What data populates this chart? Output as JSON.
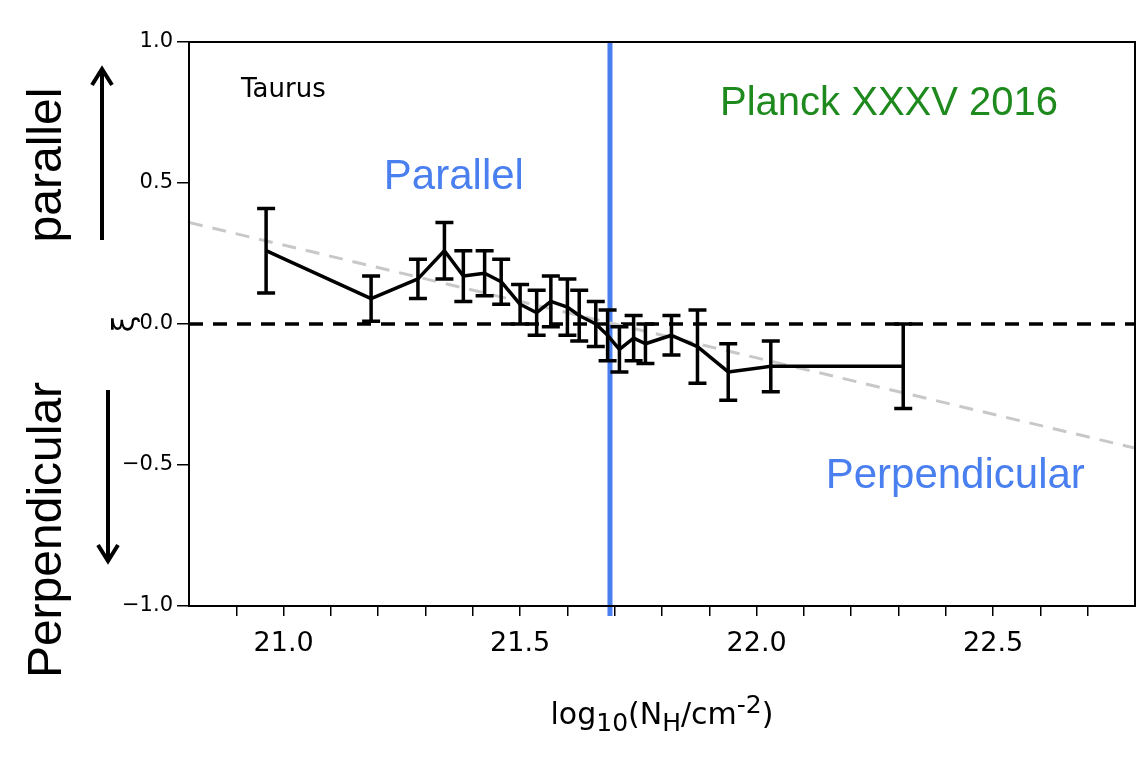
{
  "chart_data": {
    "type": "line",
    "xlabel": "log$_{10}$(N$_{H}$/cm$^{-2}$)",
    "ylabel": "ξ",
    "annotations": [
      "Taurus",
      "Planck XXXV 2016",
      "Parallel",
      "Perpendicular",
      "parallel",
      "Perpendicular"
    ],
    "xlim": [
      20.8,
      22.8
    ],
    "ylim": [
      -1,
      1
    ],
    "xticks": [
      {
        "value": 20.9,
        "label": null
      },
      {
        "value": 21,
        "label": "21.0"
      },
      {
        "value": 21.1,
        "label": null
      },
      {
        "value": 21.2,
        "label": null
      },
      {
        "value": 21.3,
        "label": null
      },
      {
        "value": 21.4,
        "label": null
      },
      21.5,
      {
        "value": 21.6,
        "label": null
      },
      {
        "value": 21.7,
        "label": null
      },
      {
        "value": 21.8,
        "label": null
      },
      {
        "value": 21.9,
        "label": null
      },
      {
        "value": 22,
        "label": "22.0"
      },
      {
        "value": 22.1,
        "label": null
      },
      {
        "value": 22.2,
        "label": null
      },
      {
        "value": 22.3,
        "label": null
      },
      {
        "value": 22.4,
        "label": null
      },
      22.5,
      {
        "value": 22.6,
        "label": null
      },
      {
        "value": 22.7,
        "label": null
      }
    ],
    "yticks": [
      {
        "value": -1,
        "label": "−1.0"
      },
      {
        "value": -0.5,
        "label": "−0.5"
      },
      {
        "value": 0,
        "label": "0.0"
      },
      0.5,
      {
        "value": 1,
        "label": "1.0"
      }
    ],
    "grid": false,
    "legend": false,
    "marker": "none",
    "series": [
      {
        "type": "line",
        "color": "#000000",
        "line_style": "solid",
        "x": [
          20.963,
          21.185,
          21.284,
          21.34,
          21.38,
          21.425,
          21.46,
          21.5,
          21.535,
          21.565,
          21.6,
          21.625,
          21.66,
          21.685,
          21.71,
          21.74,
          21.765,
          21.82,
          21.875,
          21.94,
          22.03,
          22.31
        ],
        "values": [
          0.26,
          0.09,
          0.16,
          0.26,
          0.17,
          0.18,
          0.15,
          0.07,
          0.04,
          0.08,
          0.06,
          0.03,
          0.0,
          -0.04,
          -0.09,
          -0.05,
          -0.07,
          -0.04,
          -0.08,
          -0.17,
          -0.15,
          -0.15
        ],
        "errors": [
          0.15,
          0.08,
          0.07,
          0.1,
          0.09,
          0.08,
          0.08,
          0.07,
          0.08,
          0.09,
          0.1,
          0.09,
          0.08,
          0.09,
          0.08,
          0.08,
          0.07,
          0.07,
          0.13,
          0.1,
          0.09,
          0.15
        ]
      },
      {
        "type": "line",
        "color": "#c8c8c8",
        "line_style": "dashed",
        "x": [
          20.8,
          22.8
        ],
        "values": [
          0.36,
          -0.44
        ]
      }
    ],
    "ref_lines": [
      {
        "axis": "y",
        "value": 0,
        "color": "#000000",
        "line_style": "dashed"
      },
      {
        "axis": "x",
        "value": 21.69,
        "color": "#4a7ff0",
        "line_style": "solid"
      }
    ]
  }
}
